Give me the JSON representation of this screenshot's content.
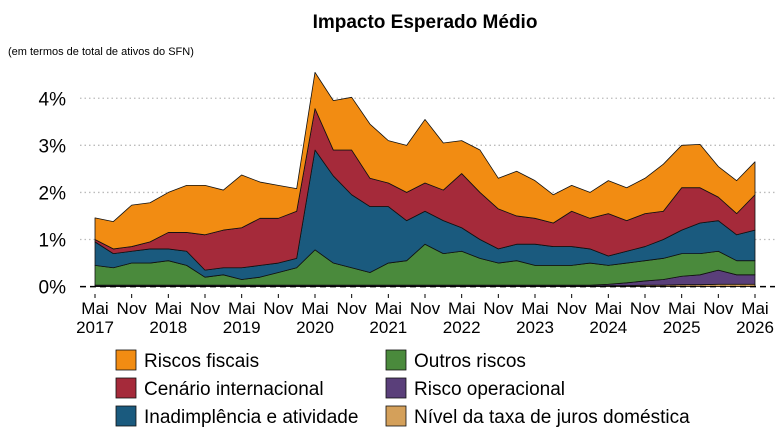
{
  "chart_data": {
    "type": "stacked_area",
    "title": "Impacto Esperado Médio",
    "subtitle": "(em termos de total de ativos do SFN)",
    "categories": [
      "Mai\n2017",
      null,
      "Nov",
      null,
      "Mai\n2018",
      null,
      "Nov",
      null,
      "Mai\n2019",
      null,
      "Nov",
      null,
      "Mai\n2020",
      null,
      "Nov",
      null,
      "Mai\n2021",
      null,
      "Nov",
      null,
      "Mai\n2022",
      null,
      "Nov",
      null,
      "Mai\n2023",
      null,
      "Nov",
      null,
      "Mai\n2024",
      null,
      "Nov",
      null,
      "Mai\n2025",
      null,
      "Nov",
      null,
      "Mai\n2026"
    ],
    "series": [
      {
        "name": "Riscos fiscais",
        "color": "#f28c12",
        "values": [
          0.46,
          0.58,
          0.88,
          0.83,
          0.85,
          1.0,
          1.05,
          0.85,
          1.12,
          0.77,
          0.7,
          0.48,
          0.77,
          1.05,
          1.12,
          1.15,
          0.9,
          1.0,
          1.35,
          1.0,
          0.7,
          0.9,
          0.65,
          0.95,
          0.8,
          0.6,
          0.55,
          0.55,
          0.7,
          0.7,
          0.75,
          1.0,
          0.9,
          0.92,
          0.65,
          0.7,
          0.7
        ]
      },
      {
        "name": "Cenário internacional",
        "color": "#a52a3a",
        "values": [
          0.05,
          0.1,
          0.1,
          0.15,
          0.35,
          0.4,
          0.75,
          0.8,
          0.85,
          1.0,
          0.95,
          1.0,
          0.88,
          0.55,
          0.95,
          0.6,
          0.5,
          0.6,
          0.6,
          0.65,
          1.15,
          1.0,
          0.85,
          0.6,
          0.55,
          0.5,
          0.75,
          0.65,
          0.9,
          0.65,
          0.7,
          0.6,
          0.9,
          0.75,
          0.5,
          0.45,
          0.75
        ]
      },
      {
        "name": "Inadimplência e atividade",
        "color": "#1a5a7e",
        "values": [
          0.5,
          0.3,
          0.25,
          0.3,
          0.25,
          0.3,
          0.15,
          0.15,
          0.25,
          0.25,
          0.2,
          0.2,
          2.12,
          1.85,
          1.55,
          1.4,
          1.2,
          0.85,
          0.7,
          0.7,
          0.5,
          0.4,
          0.3,
          0.35,
          0.45,
          0.4,
          0.4,
          0.3,
          0.2,
          0.25,
          0.3,
          0.4,
          0.5,
          0.65,
          0.65,
          0.55,
          0.65
        ]
      },
      {
        "name": "Outros riscos",
        "color": "#4a8a3c",
        "values": [
          0.42,
          0.37,
          0.47,
          0.47,
          0.52,
          0.42,
          0.17,
          0.22,
          0.12,
          0.17,
          0.27,
          0.37,
          0.75,
          0.47,
          0.37,
          0.27,
          0.47,
          0.52,
          0.87,
          0.67,
          0.72,
          0.57,
          0.47,
          0.52,
          0.42,
          0.42,
          0.42,
          0.47,
          0.4,
          0.42,
          0.43,
          0.45,
          0.48,
          0.45,
          0.4,
          0.3,
          0.3
        ]
      },
      {
        "name": "Risco operacional",
        "color": "#5a3f7a",
        "values": [
          0.02,
          0.02,
          0.02,
          0.02,
          0.02,
          0.02,
          0.02,
          0.02,
          0.02,
          0.02,
          0.02,
          0.02,
          0.02,
          0.02,
          0.02,
          0.02,
          0.02,
          0.02,
          0.02,
          0.02,
          0.02,
          0.02,
          0.02,
          0.02,
          0.02,
          0.02,
          0.02,
          0.02,
          0.03,
          0.06,
          0.09,
          0.12,
          0.18,
          0.21,
          0.3,
          0.2,
          0.2
        ]
      },
      {
        "name": "Nível da taxa de juros doméstica",
        "color": "#d4a05a",
        "values": [
          0.01,
          0.01,
          0.01,
          0.01,
          0.01,
          0.01,
          0.01,
          0.01,
          0.01,
          0.01,
          0.01,
          0.01,
          0.01,
          0.01,
          0.01,
          0.01,
          0.01,
          0.01,
          0.01,
          0.01,
          0.01,
          0.01,
          0.01,
          0.01,
          0.01,
          0.01,
          0.01,
          0.01,
          0.02,
          0.02,
          0.03,
          0.03,
          0.04,
          0.04,
          0.05,
          0.05,
          0.05
        ]
      }
    ],
    "ylim": [
      -0.2,
      4.6
    ],
    "yticks": [
      {
        "value": 0,
        "label": "0%"
      },
      {
        "value": 1,
        "label": "1%"
      },
      {
        "value": 2,
        "label": "2%"
      },
      {
        "value": 3,
        "label": "3%"
      },
      {
        "value": 4,
        "label": "4%"
      }
    ],
    "grid": true
  }
}
